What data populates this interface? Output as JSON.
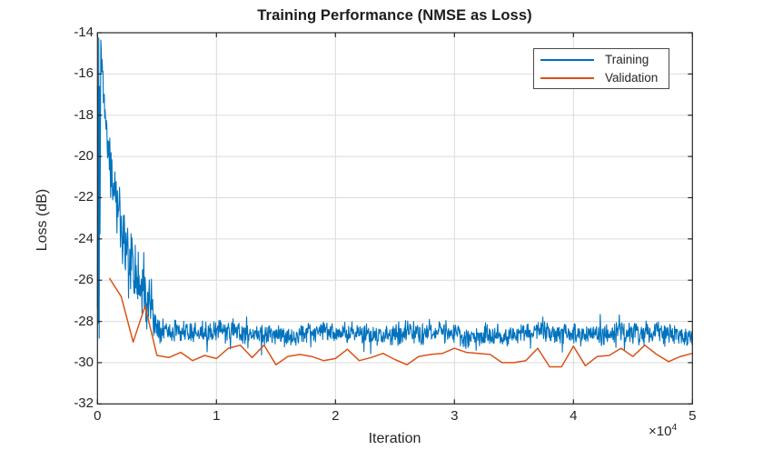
{
  "figure": {
    "background": "#ffffff"
  },
  "chart_data": {
    "type": "line",
    "title": "Training Performance (NMSE as Loss)",
    "xlabel": "Iteration",
    "ylabel": "Loss (dB)",
    "x_axis_multiplier": {
      "base": "×10",
      "exponent": "4"
    },
    "xlim": [
      0,
      5
    ],
    "ylim": [
      -32,
      -14
    ],
    "xticks": [
      0,
      1,
      2,
      3,
      4,
      5
    ],
    "yticks": [
      -14,
      -16,
      -18,
      -20,
      -22,
      -24,
      -26,
      -28,
      -30,
      -32
    ],
    "xtick_labels": [
      "0",
      "1",
      "2",
      "3",
      "4",
      "5"
    ],
    "ytick_labels": [
      "-14",
      "-16",
      "-18",
      "-20",
      "-22",
      "-24",
      "-26",
      "-28",
      "-30",
      "-32"
    ],
    "grid": true,
    "axis_color": "#262626",
    "grid_color": "#dbdbdb",
    "text_color": "#262626",
    "legend": {
      "position": "northeast",
      "entries": [
        {
          "label": "Training",
          "color": "#0072BD"
        },
        {
          "label": "Validation",
          "color": "#D95319"
        }
      ]
    },
    "series": [
      {
        "name": "Training",
        "color": "#0072BD",
        "representation": "noisy-trend",
        "note": "trend entries are [iteration_x10e4, mean_dB, noise_amplitude_dB]; initial transient oscillates -14.2 to -30.2, settles near -28.6 dB",
        "trend": [
          [
            0.0,
            -22.0,
            8.2
          ],
          [
            0.015,
            -22.0,
            8.2
          ],
          [
            0.03,
            -15.0,
            0.7
          ],
          [
            0.05,
            -16.8,
            0.8
          ],
          [
            0.08,
            -19.0,
            1.0
          ],
          [
            0.11,
            -20.8,
            1.2
          ],
          [
            0.15,
            -22.2,
            1.4
          ],
          [
            0.2,
            -23.8,
            1.5
          ],
          [
            0.25,
            -24.8,
            1.6
          ],
          [
            0.3,
            -25.6,
            1.7
          ],
          [
            0.35,
            -26.2,
            1.6
          ],
          [
            0.4,
            -26.8,
            1.5
          ],
          [
            0.45,
            -27.5,
            1.1
          ],
          [
            0.5,
            -28.2,
            0.75
          ],
          [
            0.6,
            -28.45,
            0.65
          ],
          [
            0.7,
            -28.5,
            0.6
          ],
          [
            0.9,
            -28.55,
            0.58
          ],
          [
            1.2,
            -28.6,
            0.55
          ],
          [
            5.0,
            -28.6,
            0.55
          ]
        ],
        "settled_value_db": -28.6
      },
      {
        "name": "Validation",
        "color": "#D95319",
        "representation": "polyline",
        "points": [
          [
            0.1,
            -25.9
          ],
          [
            0.2,
            -26.8
          ],
          [
            0.3,
            -29.0
          ],
          [
            0.4,
            -27.25
          ],
          [
            0.5,
            -29.65
          ],
          [
            0.6,
            -29.75
          ],
          [
            0.7,
            -29.5
          ],
          [
            0.8,
            -29.9
          ],
          [
            0.9,
            -29.65
          ],
          [
            1.0,
            -29.8
          ],
          [
            1.1,
            -29.3
          ],
          [
            1.2,
            -29.15
          ],
          [
            1.3,
            -29.75
          ],
          [
            1.4,
            -29.15
          ],
          [
            1.5,
            -30.1
          ],
          [
            1.6,
            -29.7
          ],
          [
            1.7,
            -29.6
          ],
          [
            1.8,
            -29.7
          ],
          [
            1.9,
            -29.9
          ],
          [
            2.0,
            -29.8
          ],
          [
            2.1,
            -29.35
          ],
          [
            2.2,
            -29.9
          ],
          [
            2.3,
            -29.75
          ],
          [
            2.4,
            -29.55
          ],
          [
            2.5,
            -29.85
          ],
          [
            2.6,
            -30.1
          ],
          [
            2.7,
            -29.7
          ],
          [
            2.8,
            -29.6
          ],
          [
            2.9,
            -29.55
          ],
          [
            3.0,
            -29.3
          ],
          [
            3.1,
            -29.5
          ],
          [
            3.2,
            -29.55
          ],
          [
            3.3,
            -29.6
          ],
          [
            3.4,
            -30.0
          ],
          [
            3.5,
            -30.0
          ],
          [
            3.6,
            -29.9
          ],
          [
            3.7,
            -29.3
          ],
          [
            3.8,
            -30.2
          ],
          [
            3.9,
            -30.2
          ],
          [
            4.0,
            -29.2
          ],
          [
            4.1,
            -30.15
          ],
          [
            4.2,
            -29.7
          ],
          [
            4.3,
            -29.65
          ],
          [
            4.4,
            -29.3
          ],
          [
            4.5,
            -29.7
          ],
          [
            4.6,
            -29.15
          ],
          [
            4.7,
            -29.6
          ],
          [
            4.8,
            -29.95
          ],
          [
            4.9,
            -29.7
          ],
          [
            5.0,
            -29.55
          ]
        ]
      }
    ]
  }
}
